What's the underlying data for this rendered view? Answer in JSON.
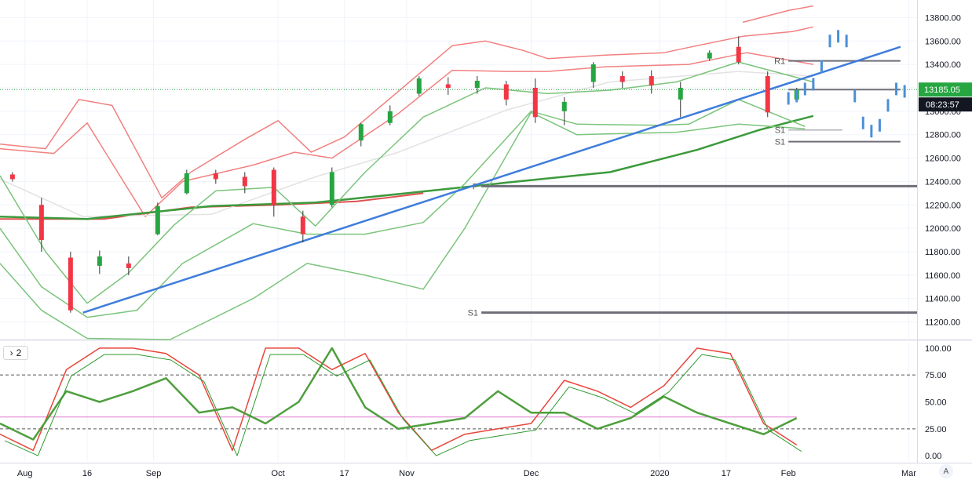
{
  "colors": {
    "up": "#26a641",
    "down": "#f23645",
    "trendline": "#3f7ddb",
    "forecast": "#4a8fd9",
    "bb_outer": "#f28080",
    "bb_mid": "#e05050",
    "kc": "#7bc47b",
    "ma_long": "#3c9a3c",
    "ma_grey": "#e2e2e2",
    "pivot": "#6e6e78",
    "osc_red": "#e8463a",
    "osc_green": "#2f9a2f",
    "osc_slow": "#4e9f3d",
    "pink_line": "#e07ad0",
    "price_label_bg": "#131722"
  },
  "price_axis": {
    "ticks": [
      "13800.00",
      "13600.00",
      "13400.00",
      "13200.00",
      "13000.00",
      "12800.00",
      "12600.00",
      "12400.00",
      "12200.00",
      "12000.00",
      "11800.00",
      "11600.00",
      "11400.00",
      "11200.00"
    ],
    "last_price": "13185.05",
    "countdown": "08:23:57"
  },
  "osc_axis": {
    "ticks": [
      "100.00",
      "75.00",
      "50.00",
      "25.00",
      "0.00"
    ]
  },
  "time_axis": {
    "labels": [
      "Aug",
      "16",
      "Sep",
      "Oct",
      "17",
      "Nov",
      "Dec",
      "2020",
      "17",
      "Feb",
      "Mar"
    ]
  },
  "pivot_labels": {
    "p": "P",
    "s1_low": "S1",
    "r1": "R1",
    "s1_upper": "S1",
    "s1_grey": "S1"
  },
  "pane_button": {
    "icon": "chevron-right-icon",
    "label": "2"
  },
  "auto_button": {
    "label": "A"
  },
  "chart_data": {
    "type": "candlestick",
    "title": "",
    "x_range": [
      "2019-07-26",
      "2020-03-03"
    ],
    "y_range": [
      11050,
      13950
    ],
    "oscillator_range": [
      -5,
      105
    ],
    "candles_approx": [
      {
        "date": "2019-07-29",
        "o": 12460,
        "h": 12480,
        "l": 12400,
        "c": 12420
      },
      {
        "date": "2019-08-05",
        "o": 12200,
        "h": 12260,
        "l": 11800,
        "c": 11900
      },
      {
        "date": "2019-08-12",
        "o": 11750,
        "h": 11800,
        "l": 11280,
        "c": 11300
      },
      {
        "date": "2019-08-19",
        "o": 11680,
        "h": 11810,
        "l": 11610,
        "c": 11760
      },
      {
        "date": "2019-08-26",
        "o": 11700,
        "h": 11760,
        "l": 11600,
        "c": 11660
      },
      {
        "date": "2019-09-02",
        "o": 11950,
        "h": 12220,
        "l": 11940,
        "c": 12190
      },
      {
        "date": "2019-09-09",
        "o": 12300,
        "h": 12500,
        "l": 12290,
        "c": 12470
      },
      {
        "date": "2019-09-16",
        "o": 12470,
        "h": 12500,
        "l": 12380,
        "c": 12420
      },
      {
        "date": "2019-09-23",
        "o": 12440,
        "h": 12480,
        "l": 12300,
        "c": 12360
      },
      {
        "date": "2019-09-30",
        "o": 12500,
        "h": 12520,
        "l": 12100,
        "c": 12200
      },
      {
        "date": "2019-10-07",
        "o": 12100,
        "h": 12150,
        "l": 11880,
        "c": 11950
      },
      {
        "date": "2019-10-14",
        "o": 12200,
        "h": 12520,
        "l": 12180,
        "c": 12480
      },
      {
        "date": "2019-10-21",
        "o": 12750,
        "h": 12900,
        "l": 12700,
        "c": 12890
      },
      {
        "date": "2019-10-28",
        "o": 12900,
        "h": 13050,
        "l": 12880,
        "c": 13000
      },
      {
        "date": "2019-11-04",
        "o": 13150,
        "h": 13300,
        "l": 13130,
        "c": 13280
      },
      {
        "date": "2019-11-11",
        "o": 13230,
        "h": 13290,
        "l": 13140,
        "c": 13200
      },
      {
        "date": "2019-11-18",
        "o": 13200,
        "h": 13300,
        "l": 13150,
        "c": 13260
      },
      {
        "date": "2019-11-25",
        "o": 13230,
        "h": 13260,
        "l": 13050,
        "c": 13100
      },
      {
        "date": "2019-12-02",
        "o": 13200,
        "h": 13280,
        "l": 12900,
        "c": 12950
      },
      {
        "date": "2019-12-09",
        "o": 13000,
        "h": 13120,
        "l": 12880,
        "c": 13080
      },
      {
        "date": "2019-12-16",
        "o": 13250,
        "h": 13420,
        "l": 13200,
        "c": 13400
      },
      {
        "date": "2019-12-23",
        "o": 13300,
        "h": 13340,
        "l": 13200,
        "c": 13250
      },
      {
        "date": "2019-12-30",
        "o": 13300,
        "h": 13350,
        "l": 13150,
        "c": 13220
      },
      {
        "date": "2020-01-06",
        "o": 13100,
        "h": 13250,
        "l": 12950,
        "c": 13200
      },
      {
        "date": "2020-01-13",
        "o": 13450,
        "h": 13520,
        "l": 13430,
        "c": 13500
      },
      {
        "date": "2020-01-20",
        "o": 13550,
        "h": 13640,
        "l": 13400,
        "c": 13420
      },
      {
        "date": "2020-01-27",
        "o": 13300,
        "h": 13340,
        "l": 12950,
        "c": 12990
      },
      {
        "date": "2020-02-03",
        "o": 13100,
        "h": 13200,
        "l": 13080,
        "c": 13185
      }
    ],
    "trendline": {
      "from": {
        "date": "2019-08-15",
        "price": 11280
      },
      "to": {
        "date": "2020-02-28",
        "price": 13550
      }
    },
    "pivot_levels": [
      {
        "label": "P",
        "value": 12360
      },
      {
        "label": "S1",
        "value": 11280
      },
      {
        "label": "R1",
        "value": 13430
      },
      {
        "label": "S1",
        "value": 12740
      }
    ],
    "oscillator": {
      "levels": [
        75,
        25
      ],
      "pink_level": 36,
      "series": [
        {
          "values_approx": [
            20,
            5,
            80,
            100,
            100,
            95,
            75,
            5,
            100,
            100,
            80,
            95,
            40,
            5,
            20,
            25,
            30,
            70,
            60,
            45,
            65,
            100,
            95,
            30,
            10
          ]
        },
        {
          "values_approx": [
            30,
            15,
            60,
            50,
            60,
            72,
            40,
            45,
            30,
            50,
            100,
            45,
            25,
            30,
            35,
            60,
            40,
            40,
            25,
            35,
            55,
            40,
            30,
            20,
            35
          ]
        }
      ]
    }
  }
}
